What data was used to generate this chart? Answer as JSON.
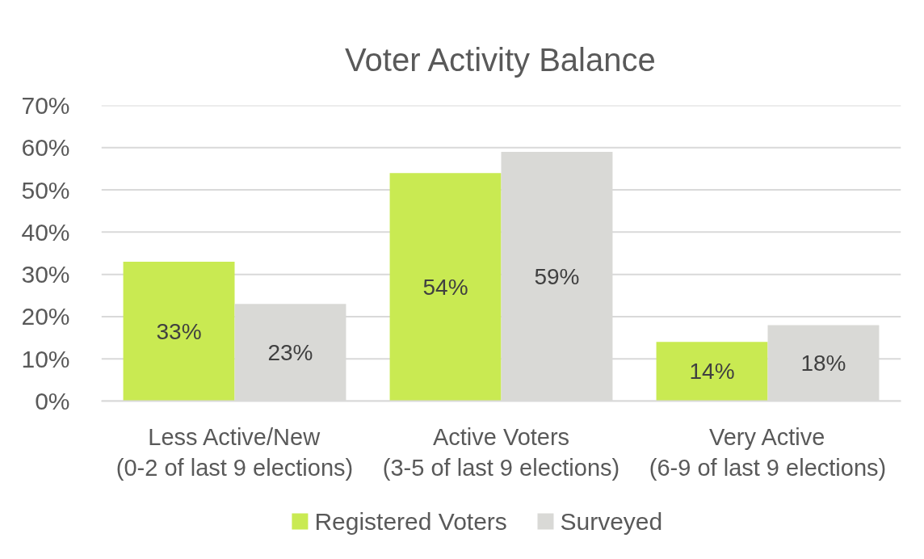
{
  "chart_data": {
    "type": "bar",
    "title": "Voter Activity Balance",
    "categories": [
      "Less Active/New\n(0-2 of last 9 elections)",
      "Active Voters\n(3-5 of last 9 elections)",
      "Very Active\n(6-9 of last 9 elections)"
    ],
    "series": [
      {
        "name": "Registered Voters",
        "color": "#c9ea52",
        "values": [
          33,
          54,
          14
        ],
        "value_labels": [
          "33%",
          "54%",
          "14%"
        ]
      },
      {
        "name": "Surveyed",
        "color": "#d9d9d6",
        "values": [
          23,
          59,
          18
        ],
        "value_labels": [
          "23%",
          "59%",
          "18%"
        ]
      }
    ],
    "ylim": [
      0,
      70
    ],
    "yticks": [
      {
        "value": 0,
        "label": "0%"
      },
      {
        "value": 10,
        "label": "10%"
      },
      {
        "value": 20,
        "label": "20%"
      },
      {
        "value": 30,
        "label": "30%"
      },
      {
        "value": 40,
        "label": "40%"
      },
      {
        "value": 50,
        "label": "50%"
      },
      {
        "value": 60,
        "label": "60%"
      },
      {
        "value": 70,
        "label": "70%"
      }
    ],
    "grid": "y",
    "legend": "bottom"
  }
}
